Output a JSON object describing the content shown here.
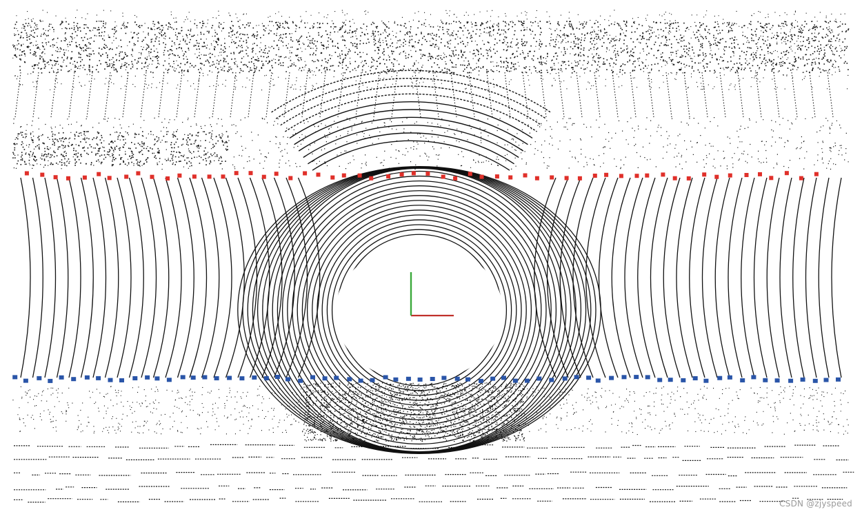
{
  "scene": {
    "colors": {
      "background": "#ffffff",
      "points": "#111111",
      "boundary_left": "#e0302a",
      "boundary_right": "#2a55a8",
      "axis_x": "#c0302a",
      "axis_y": "#3aa83a"
    }
  },
  "watermark": {
    "text": "CSDN @zjyspeed"
  }
}
